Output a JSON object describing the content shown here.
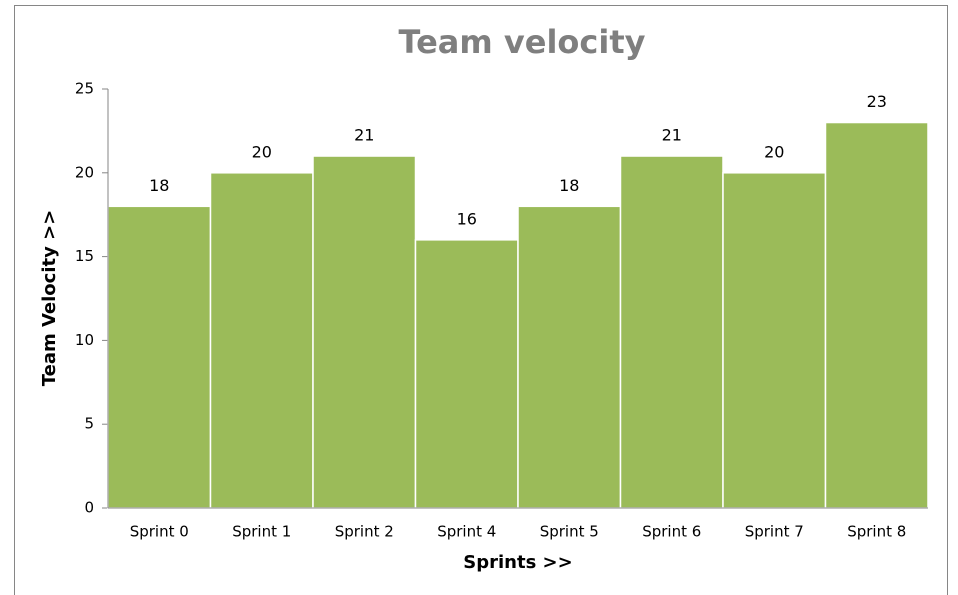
{
  "chart_data": {
    "type": "bar",
    "title": "Team velocity",
    "x_label": "Sprints >>",
    "y_label": "Team Velocity >>",
    "categories": [
      "Sprint 0",
      "Sprint 1",
      "Sprint 2",
      "Sprint 4",
      "Sprint 5",
      "Sprint 6",
      "Sprint 7",
      "Sprint 8"
    ],
    "values": [
      18,
      20,
      21,
      16,
      18,
      21,
      20,
      23
    ],
    "color": "#9bbb59",
    "ylim": [
      0,
      25
    ],
    "yticks": [
      0,
      5,
      10,
      15,
      20,
      25
    ],
    "grid": false,
    "data_labels": true
  }
}
